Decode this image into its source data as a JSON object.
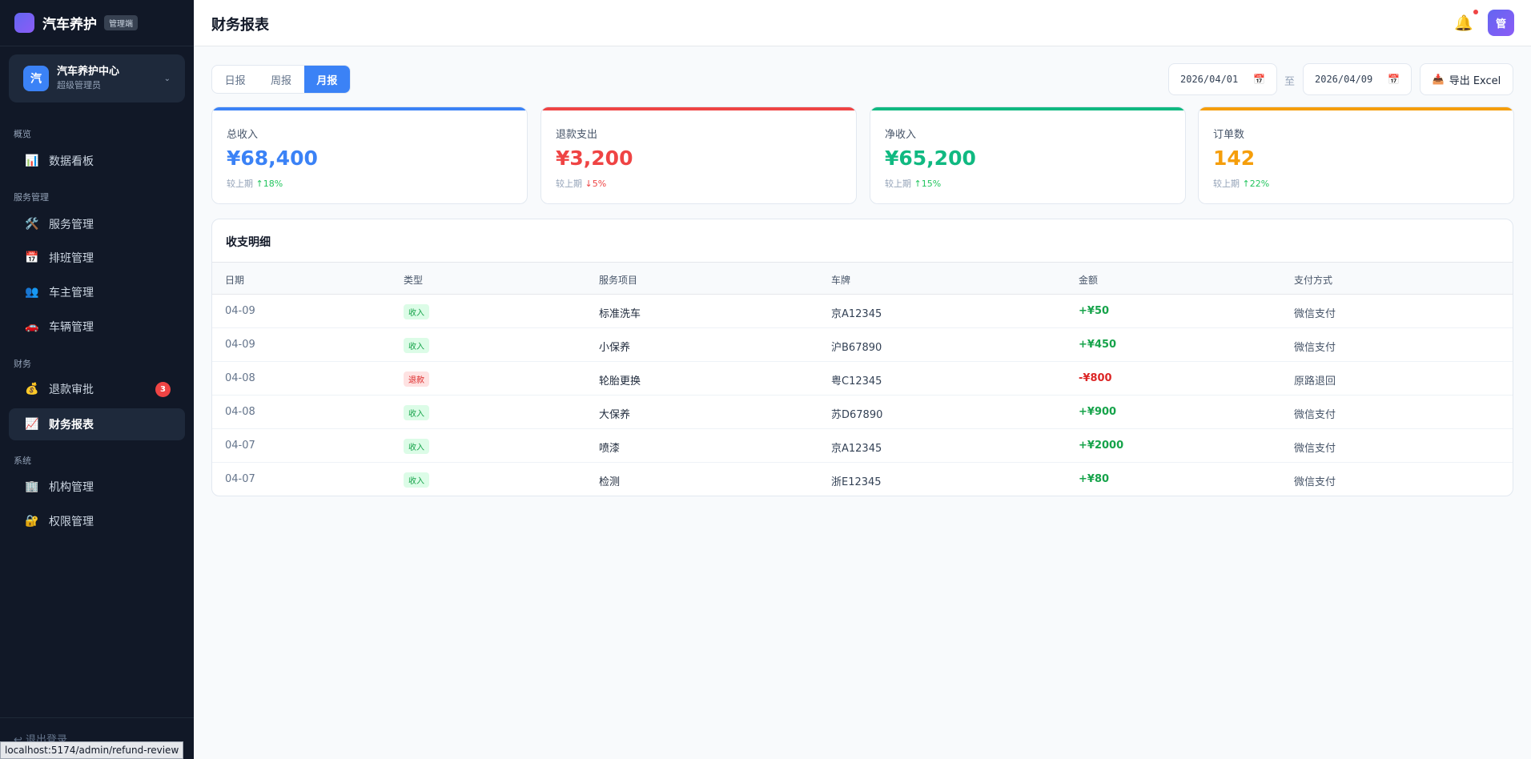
{
  "brand": {
    "name": "汽车养护",
    "badge": "管理端"
  },
  "org": {
    "avatar": "汽",
    "name": "汽车养护中心",
    "role": "超级管理员",
    "caret": "⌄"
  },
  "nav": {
    "groups": [
      "概览",
      "服务管理",
      "财务",
      "系统"
    ],
    "items": [
      {
        "label": "数据看板",
        "icon": "📊"
      },
      {
        "label": "服务管理",
        "icon": "🛠️"
      },
      {
        "label": "排班管理",
        "icon": "📅"
      },
      {
        "label": "车主管理",
        "icon": "👥"
      },
      {
        "label": "车辆管理",
        "icon": "🚗"
      },
      {
        "label": "退款审批",
        "icon": "💰",
        "badge": "3"
      },
      {
        "label": "财务报表",
        "icon": "📈"
      },
      {
        "label": "机构管理",
        "icon": "🏢"
      },
      {
        "label": "权限管理",
        "icon": "🔐"
      }
    ]
  },
  "footer": {
    "logout": "↩ 退出登录",
    "status_url": "localhost:5174/admin/refund-review"
  },
  "header": {
    "title": "财务报表",
    "user_avatar": "管",
    "bell": "🔔"
  },
  "tabs": [
    "日报",
    "周报",
    "月报"
  ],
  "active_tab": "月报",
  "date_range": {
    "start": "2026/04/01",
    "end": "2026/04/09",
    "separator": "至",
    "calendar_icon": "📅"
  },
  "export": {
    "label": "导出 Excel",
    "icon": "📥"
  },
  "stats": [
    {
      "label": "总收入",
      "value": "¥68,400",
      "compare_label": "较上期",
      "trend": "↑",
      "change": "18%",
      "color": "#3b82f6",
      "direction": "up"
    },
    {
      "label": "退款支出",
      "value": "¥3,200",
      "compare_label": "较上期",
      "trend": "↓",
      "change": "5%",
      "color": "#ef4444",
      "direction": "down"
    },
    {
      "label": "净收入",
      "value": "¥65,200",
      "compare_label": "较上期",
      "trend": "↑",
      "change": "15%",
      "color": "#10b981",
      "direction": "up"
    },
    {
      "label": "订单数",
      "value": "142",
      "compare_label": "较上期",
      "trend": "↑",
      "change": "22%",
      "color": "#f59e0b",
      "direction": "up"
    }
  ],
  "detail": {
    "title": "收支明细",
    "columns": [
      "日期",
      "类型",
      "服务项目",
      "车牌",
      "金额",
      "支付方式"
    ],
    "rows": [
      {
        "date": "04-09",
        "type": "收入",
        "service": "标准洗车",
        "plate": "京A12345",
        "amount": "+¥50",
        "pay": "微信支付"
      },
      {
        "date": "04-09",
        "type": "收入",
        "service": "小保养",
        "plate": "沪B67890",
        "amount": "+¥450",
        "pay": "微信支付"
      },
      {
        "date": "04-08",
        "type": "退款",
        "service": "轮胎更换",
        "plate": "粤C12345",
        "amount": "-¥800",
        "pay": "原路退回"
      },
      {
        "date": "04-08",
        "type": "收入",
        "service": "大保养",
        "plate": "苏D67890",
        "amount": "+¥900",
        "pay": "微信支付"
      },
      {
        "date": "04-07",
        "type": "收入",
        "service": "喷漆",
        "plate": "京A12345",
        "amount": "+¥2000",
        "pay": "微信支付"
      },
      {
        "date": "04-07",
        "type": "收入",
        "service": "检测",
        "plate": "浙E12345",
        "amount": "+¥80",
        "pay": "微信支付"
      }
    ]
  }
}
